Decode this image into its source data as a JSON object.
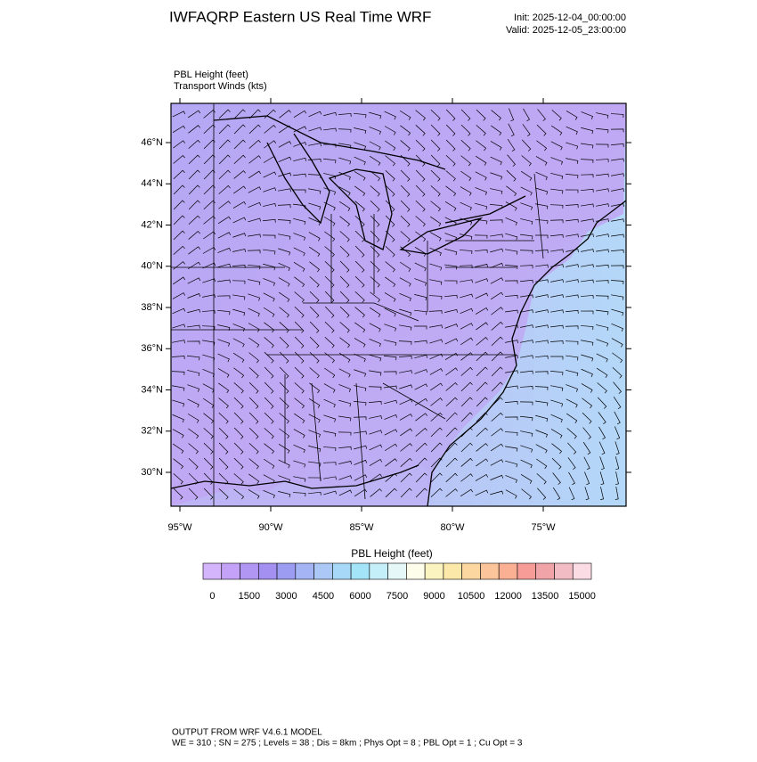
{
  "header": {
    "title": "IWFAQRP Eastern US Real Time WRF",
    "init": "Init: 2025-12-04_00:00:00",
    "valid": "Valid: 2025-12-05_23:00:00"
  },
  "fields": [
    "PBL Height   (feet)",
    "Transport Winds   (kts)"
  ],
  "map": {
    "lat_labels": [
      "46°N",
      "44°N",
      "42°N",
      "40°N",
      "38°N",
      "36°N",
      "34°N",
      "32°N",
      "30°N"
    ],
    "lon_labels": [
      "95°W",
      "90°W",
      "85°W",
      "80°W",
      "75°W"
    ]
  },
  "colorbar": {
    "title": "PBL Height  (feet)",
    "labels": [
      0,
      1500,
      3000,
      4500,
      6000,
      7500,
      9000,
      10500,
      12000,
      13500,
      15000
    ],
    "colors": [
      "#d4b4fa",
      "#c4a2f8",
      "#b296f4",
      "#a490f0",
      "#9c9cf2",
      "#a4b4f4",
      "#acc8f6",
      "#a8d8f8",
      "#a4e4f8",
      "#c4eef8",
      "#e6f8f8",
      "#fefcea",
      "#fcf4c0",
      "#fce8a8",
      "#fcd8a0",
      "#fcc49a",
      "#fbb094",
      "#f89c98",
      "#f0a4a8",
      "#f2bcc4",
      "#fcdce4"
    ]
  },
  "footer": {
    "line1": "OUTPUT FROM WRF V4.6.1 MODEL",
    "line2": "WE = 310 ; SN = 275 ; Levels = 38 ; Dis = 8km ; Phys Opt = 8 ; PBL Opt = 1 ; Cu Opt = 3"
  }
}
